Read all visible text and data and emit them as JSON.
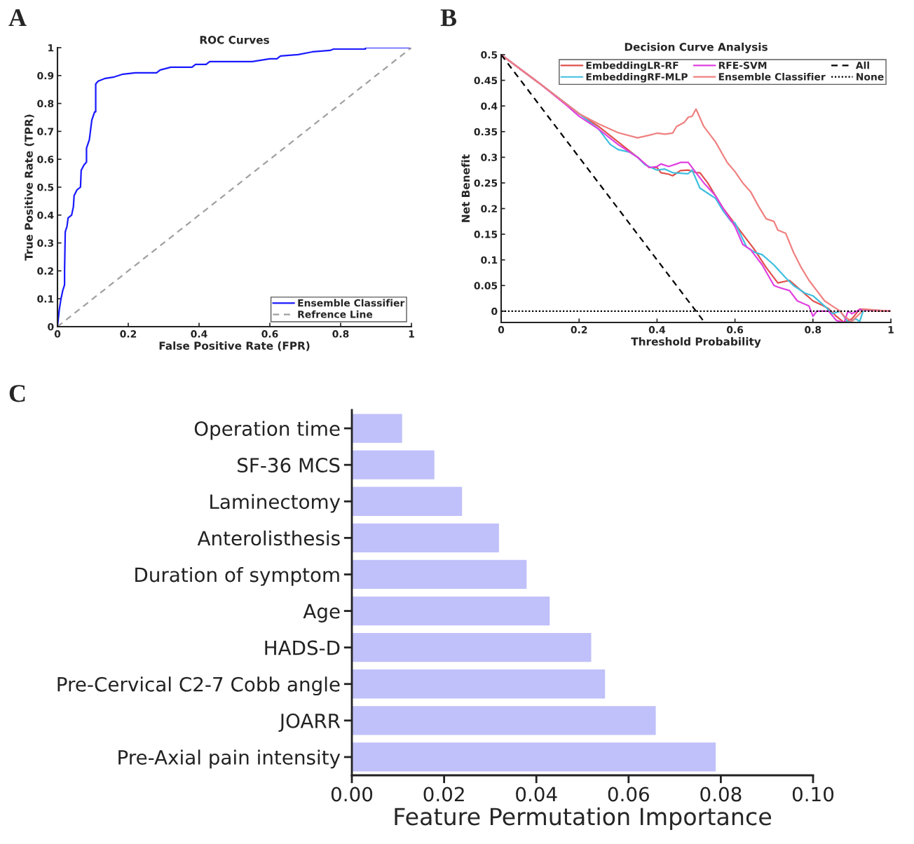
{
  "chart_data": [
    {
      "type": "line",
      "title": "ROC Curves",
      "xlabel": "False Positive Rate (FPR)",
      "ylabel": "True Positive Rate (TPR)",
      "annotations": [
        "A"
      ],
      "xlim": [
        0,
        1
      ],
      "ylim": [
        0,
        1
      ],
      "xticks": [
        0,
        0.2,
        0.4,
        0.6,
        0.8,
        1
      ],
      "yticks": [
        0,
        0.1,
        0.2,
        0.3,
        0.4,
        0.5,
        0.6,
        0.7,
        0.8,
        0.9,
        1
      ],
      "legend": "bottom right",
      "series": [
        {
          "name": "Ensemble Classifier",
          "color": "#1a1aff",
          "line_style": "solid",
          "x": [
            0,
            0.005,
            0.01,
            0.015,
            0.02,
            0.02,
            0.022,
            0.027,
            0.03,
            0.04,
            0.045,
            0.047,
            0.055,
            0.065,
            0.067,
            0.075,
            0.082,
            0.082,
            0.09,
            0.093,
            0.097,
            0.105,
            0.108,
            0.108,
            0.115,
            0.135,
            0.16,
            0.185,
            0.22,
            0.28,
            0.29,
            0.32,
            0.38,
            0.39,
            0.42,
            0.43,
            0.55,
            0.6,
            0.62,
            0.63,
            0.68,
            0.72,
            0.77,
            0.78,
            0.87,
            0.87,
            1.0
          ],
          "values": [
            0,
            0.06,
            0.1,
            0.13,
            0.15,
            0.2,
            0.34,
            0.36,
            0.39,
            0.4,
            0.43,
            0.47,
            0.49,
            0.5,
            0.56,
            0.58,
            0.59,
            0.64,
            0.67,
            0.7,
            0.74,
            0.77,
            0.77,
            0.87,
            0.88,
            0.89,
            0.895,
            0.905,
            0.91,
            0.91,
            0.92,
            0.93,
            0.93,
            0.94,
            0.94,
            0.95,
            0.95,
            0.96,
            0.96,
            0.97,
            0.975,
            0.985,
            0.99,
            0.995,
            0.995,
            1.0,
            1.0
          ]
        },
        {
          "name": "Refrence Line",
          "color": "#a0a0a0",
          "line_style": "dashed",
          "x": [
            0,
            1
          ],
          "values": [
            0,
            1
          ]
        }
      ]
    },
    {
      "type": "line",
      "title": "Decision Curve Analysis",
      "xlabel": "Threshold Probability",
      "ylabel": "Net Benefit",
      "annotations": [
        "B"
      ],
      "xlim": [
        0,
        1
      ],
      "ylim": [
        -0.022,
        0.5
      ],
      "xticks": [
        0,
        0.2,
        0.4,
        0.6,
        0.8,
        1
      ],
      "yticks": [
        0,
        0.05,
        0.1,
        0.15,
        0.2,
        0.25,
        0.3,
        0.35,
        0.4,
        0.45,
        0.5
      ],
      "legend": "top right",
      "series": [
        {
          "name": "EmbeddingLR-RF",
          "color": "#e0504c",
          "line_style": "solid",
          "x": [
            0,
            0.1,
            0.2,
            0.25,
            0.3,
            0.35,
            0.38,
            0.4,
            0.41,
            0.43,
            0.44,
            0.46,
            0.48,
            0.5,
            0.51,
            0.53,
            0.55,
            0.57,
            0.6,
            0.62,
            0.65,
            0.68,
            0.71,
            0.74,
            0.77,
            0.8,
            0.82,
            0.84,
            0.86,
            0.88,
            0.9,
            0.92,
            0.95,
            1.0
          ],
          "values": [
            0.5,
            0.443,
            0.385,
            0.36,
            0.33,
            0.3,
            0.28,
            0.28,
            0.27,
            0.267,
            0.264,
            0.274,
            0.275,
            0.27,
            0.27,
            0.25,
            0.225,
            0.2,
            0.17,
            0.15,
            0.12,
            0.085,
            0.055,
            0.06,
            0.04,
            0.02,
            0.013,
            0.005,
            -0.01,
            -0.022,
            -0.015,
            0.004,
            0.001,
            0.0
          ]
        },
        {
          "name": "EmbeddingRF-MLP",
          "color": "#3fbfdf",
          "line_style": "solid",
          "x": [
            0,
            0.1,
            0.2,
            0.25,
            0.28,
            0.3,
            0.33,
            0.35,
            0.37,
            0.4,
            0.42,
            0.44,
            0.48,
            0.49,
            0.51,
            0.55,
            0.57,
            0.59,
            0.6,
            0.63,
            0.65,
            0.67,
            0.7,
            0.73,
            0.75,
            0.78,
            0.8,
            0.83,
            0.85,
            0.87,
            0.89,
            0.91,
            0.92,
            0.93,
            1.0
          ],
          "values": [
            0.5,
            0.443,
            0.385,
            0.355,
            0.325,
            0.315,
            0.31,
            0.3,
            0.285,
            0.275,
            0.277,
            0.27,
            0.268,
            0.275,
            0.24,
            0.22,
            0.195,
            0.175,
            0.172,
            0.125,
            0.115,
            0.11,
            0.09,
            0.065,
            0.05,
            0.035,
            0.03,
            0.01,
            -0.005,
            0.0,
            -0.022,
            -0.015,
            -0.02,
            0.003,
            0.0
          ]
        },
        {
          "name": "RFE-SVM",
          "color": "#e040e0",
          "line_style": "solid",
          "x": [
            0,
            0.1,
            0.17,
            0.2,
            0.25,
            0.3,
            0.35,
            0.38,
            0.4,
            0.41,
            0.43,
            0.45,
            0.46,
            0.48,
            0.5,
            0.52,
            0.55,
            0.57,
            0.6,
            0.62,
            0.64,
            0.67,
            0.7,
            0.71,
            0.74,
            0.76,
            0.79,
            0.8,
            0.81,
            0.84,
            0.86,
            0.88,
            0.89,
            0.9,
            0.92,
            1.0
          ],
          "values": [
            0.5,
            0.443,
            0.4,
            0.38,
            0.355,
            0.325,
            0.3,
            0.28,
            0.282,
            0.287,
            0.282,
            0.287,
            0.29,
            0.29,
            0.27,
            0.25,
            0.225,
            0.2,
            0.165,
            0.13,
            0.12,
            0.09,
            0.05,
            0.047,
            0.04,
            0.02,
            0.01,
            -0.01,
            0.0,
            0.0,
            -0.018,
            -0.022,
            0.0,
            -0.005,
            0.003,
            0.0
          ]
        },
        {
          "name": "Ensemble Classifier",
          "color": "#f08080",
          "line_style": "solid",
          "x": [
            0,
            0.1,
            0.2,
            0.25,
            0.3,
            0.35,
            0.38,
            0.4,
            0.42,
            0.44,
            0.45,
            0.47,
            0.48,
            0.49,
            0.5,
            0.52,
            0.55,
            0.58,
            0.6,
            0.62,
            0.64,
            0.66,
            0.68,
            0.7,
            0.71,
            0.73,
            0.75,
            0.77,
            0.79,
            0.81,
            0.83,
            0.85,
            0.87,
            0.88,
            0.9,
            0.92,
            0.93,
            0.96,
            1.0
          ],
          "values": [
            0.5,
            0.443,
            0.385,
            0.365,
            0.348,
            0.338,
            0.343,
            0.347,
            0.345,
            0.347,
            0.36,
            0.368,
            0.378,
            0.38,
            0.394,
            0.36,
            0.33,
            0.29,
            0.272,
            0.25,
            0.233,
            0.205,
            0.18,
            0.175,
            0.158,
            0.152,
            0.115,
            0.085,
            0.06,
            0.04,
            0.02,
            0.01,
            0.0,
            -0.01,
            -0.02,
            -0.005,
            0.004,
            0.002,
            0.0
          ]
        },
        {
          "name": "All",
          "color": "#000000",
          "line_style": "dashed",
          "x": [
            0,
            0.52
          ],
          "values": [
            0.5,
            -0.02
          ]
        },
        {
          "name": "None",
          "color": "#000000",
          "line_style": "dotted",
          "x": [
            0,
            1
          ],
          "values": [
            0,
            0
          ]
        }
      ]
    },
    {
      "type": "bar",
      "orientation": "horizontal",
      "xlabel": "Feature Permutation Importance",
      "annotations": [
        "C"
      ],
      "categories": [
        "Operation time",
        "SF-36 MCS",
        "Laminectomy",
        "Anterolisthesis",
        "Duration of symptom",
        "Age",
        "HADS-D",
        "Pre-Cervical C2-7 Cobb angle",
        "JOARR",
        "Pre-Axial pain intensity"
      ],
      "values": [
        0.011,
        0.018,
        0.024,
        0.032,
        0.038,
        0.043,
        0.052,
        0.055,
        0.066,
        0.079
      ],
      "color": "#c0c0fa",
      "xlim": [
        0,
        0.1
      ],
      "xticks": [
        {
          "value": 0,
          "label": "0.00"
        },
        {
          "value": 0.02,
          "label": "0.02"
        },
        {
          "value": 0.04,
          "label": "0.04"
        },
        {
          "value": 0.06,
          "label": "0.06"
        },
        {
          "value": 0.08,
          "label": "0.08"
        },
        {
          "value": 0.1,
          "label": "0.10"
        }
      ]
    }
  ]
}
